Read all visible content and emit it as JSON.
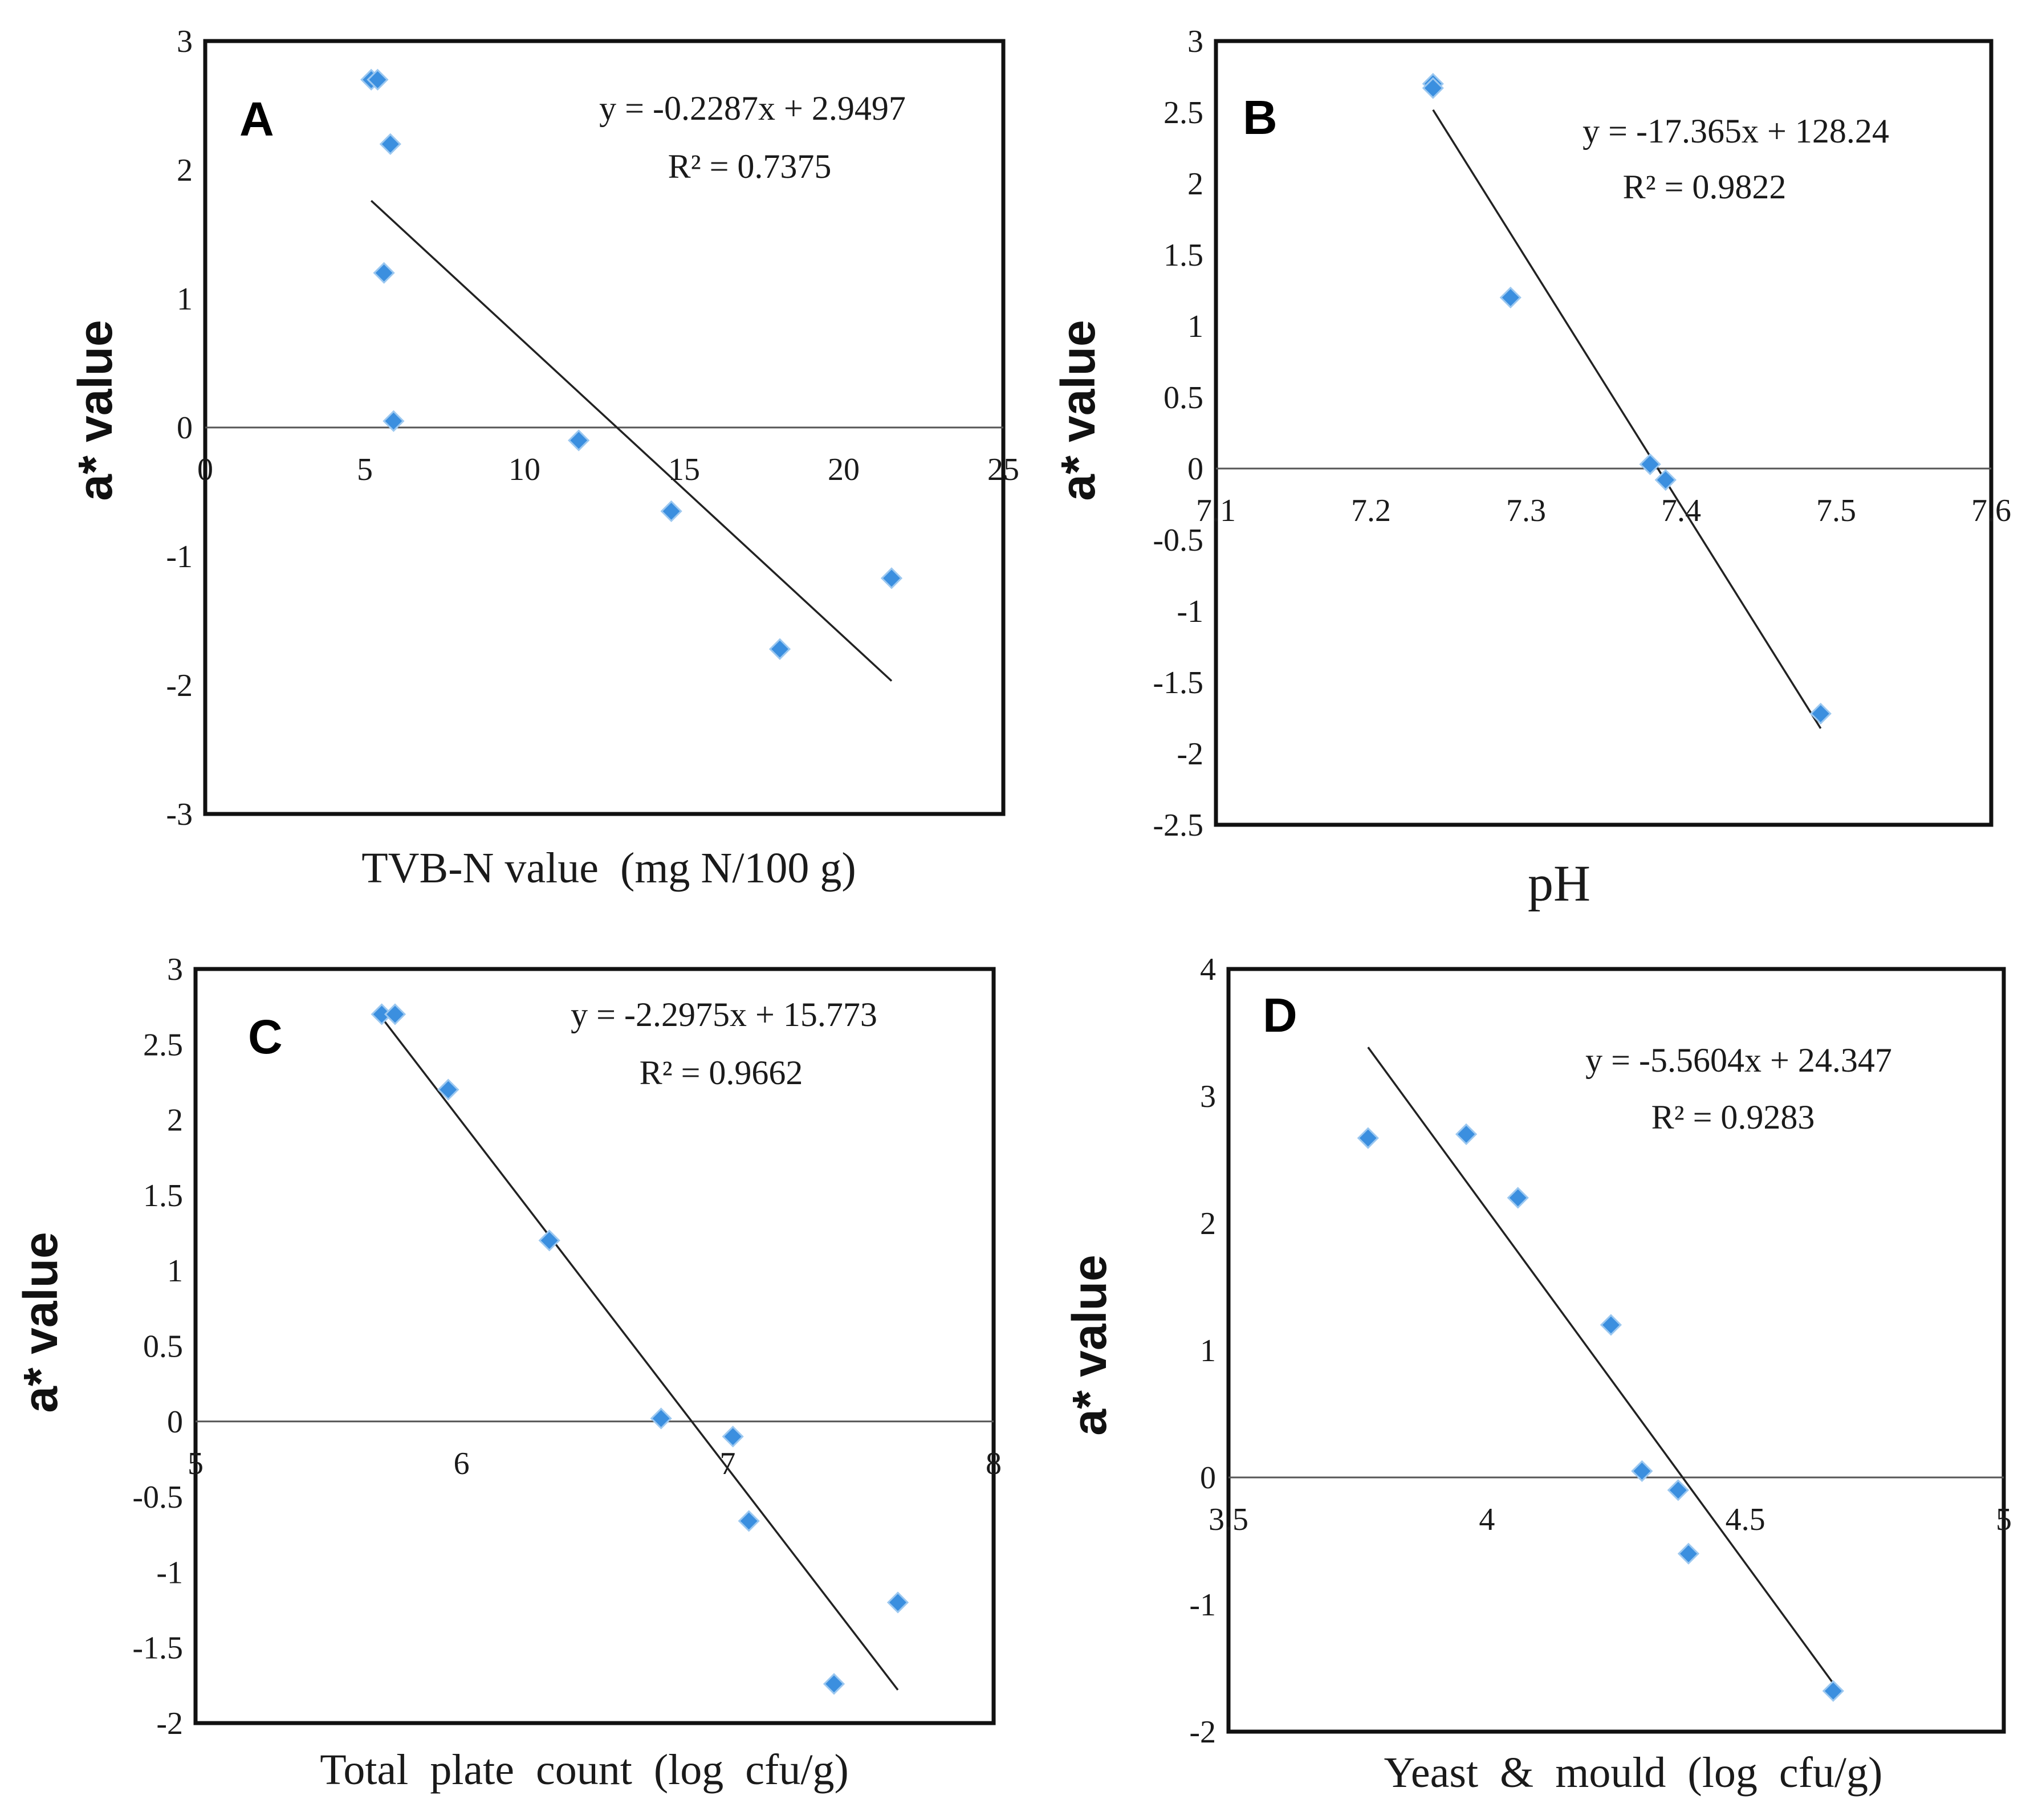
{
  "colors": {
    "marker": "#3b8fdf",
    "frame": "#111111",
    "trendline": "#222222"
  },
  "chart_data": [
    {
      "type": "scatter",
      "panel": "A",
      "xlabel": "TVB-N value  (mg N/100 g)",
      "ylabel": "a* value",
      "xlim": [
        0,
        25
      ],
      "ylim": [
        -3,
        3
      ],
      "xticks": [
        0,
        5,
        10,
        15,
        20,
        25
      ],
      "xtick_labels": [
        "0",
        "5",
        "10",
        "15",
        "20",
        "25"
      ],
      "yticks": [
        3,
        2,
        1,
        0,
        -1,
        -2,
        -3
      ],
      "ytick_labels": [
        "3",
        "2",
        "1",
        "0",
        "-1",
        "-2",
        "-3"
      ],
      "x": [
        5.2,
        5.4,
        5.8,
        5.6,
        5.9,
        11.7,
        14.6,
        18.0,
        21.5
      ],
      "y": [
        2.7,
        2.7,
        2.2,
        1.2,
        0.05,
        -0.1,
        -0.65,
        -1.72,
        -1.17
      ],
      "trendline": {
        "slope": -0.2287,
        "intercept": 2.9497,
        "x_start": 5.2,
        "x_end": 21.5
      },
      "equation": "y = -0.2287x  + 2.9497",
      "r2": "R² = 0.7375"
    },
    {
      "type": "scatter",
      "panel": "B",
      "xlabel": "pH",
      "ylabel": "a* value",
      "xlim": [
        7.1,
        7.6
      ],
      "ylim": [
        -2.5,
        3
      ],
      "xticks": [
        7.1,
        7.2,
        7.3,
        7.4,
        7.5,
        7.6
      ],
      "xtick_labels": [
        "7.1",
        "7.2",
        "7.3",
        "7.4",
        "7.5",
        "7.6"
      ],
      "yticks": [
        3,
        2.5,
        2,
        1.5,
        1,
        0.5,
        0,
        -0.5,
        -1,
        -1.5,
        -2,
        -2.5
      ],
      "ytick_labels": [
        "3",
        "2.5",
        "2",
        "1.5",
        "1",
        "0.5",
        "0",
        "-0.5",
        "-1",
        "-1.5",
        "-2",
        "-2.5"
      ],
      "x": [
        7.24,
        7.24,
        7.29,
        7.38,
        7.39,
        7.49
      ],
      "y": [
        2.7,
        2.67,
        1.2,
        0.03,
        -0.08,
        -1.72
      ],
      "trendline": {
        "slope": -17.365,
        "intercept": 128.24,
        "x_start": 7.24,
        "x_end": 7.49
      },
      "equation": "y = -17.365x  + 128.24",
      "r2": "R² = 0.9822"
    },
    {
      "type": "scatter",
      "panel": "C",
      "xlabel": "Total  plate  count  (log  cfu/g)",
      "ylabel": "a* value",
      "xlim": [
        5,
        8
      ],
      "ylim": [
        -2,
        3
      ],
      "xticks": [
        5,
        6,
        7,
        8
      ],
      "xtick_labels": [
        "5",
        "6",
        "7",
        "8"
      ],
      "yticks": [
        3,
        2.5,
        2,
        1.5,
        1,
        0.5,
        0,
        -0.5,
        -1,
        -1.5,
        -2
      ],
      "ytick_labels": [
        "3",
        "2.5",
        "2",
        "1.5",
        "1",
        "0.5",
        "0",
        "-0.5",
        "-1",
        "-1.5",
        "-2"
      ],
      "x": [
        5.7,
        5.75,
        5.95,
        6.33,
        6.75,
        7.02,
        7.08,
        7.4,
        7.64
      ],
      "y": [
        2.7,
        2.7,
        2.2,
        1.2,
        0.02,
        -0.1,
        -0.66,
        -1.74,
        -1.2
      ],
      "trendline": {
        "slope": -2.2975,
        "intercept": 15.773,
        "x_start": 5.7,
        "x_end": 7.64
      },
      "equation": "y = -2.2975x  + 15.773",
      "r2": "R² = 0.9662"
    },
    {
      "type": "scatter",
      "panel": "D",
      "xlabel": "Yeast  &  mould  (log  cfu/g)",
      "ylabel": "a* value",
      "xlim": [
        3.5,
        5
      ],
      "ylim": [
        -2,
        4
      ],
      "xticks": [
        3.5,
        4,
        4.5,
        5
      ],
      "xtick_labels": [
        "3.5",
        "4",
        "4.5",
        "5"
      ],
      "yticks": [
        4,
        3,
        2,
        1,
        0,
        -1,
        -2
      ],
      "ytick_labels": [
        "4",
        "3",
        "2",
        "1",
        "0",
        "-1",
        "-2"
      ],
      "x": [
        3.77,
        3.96,
        4.06,
        4.24,
        4.3,
        4.37,
        4.39,
        4.67
      ],
      "y": [
        2.67,
        2.7,
        2.2,
        1.2,
        0.05,
        -0.1,
        -0.6,
        -1.68
      ],
      "trendline": {
        "slope": -5.5604,
        "intercept": 24.347,
        "x_start": 3.77,
        "x_end": 4.67
      },
      "equation": "y = -5.5604x  + 24.347",
      "r2": "R² = 0.9283"
    }
  ]
}
